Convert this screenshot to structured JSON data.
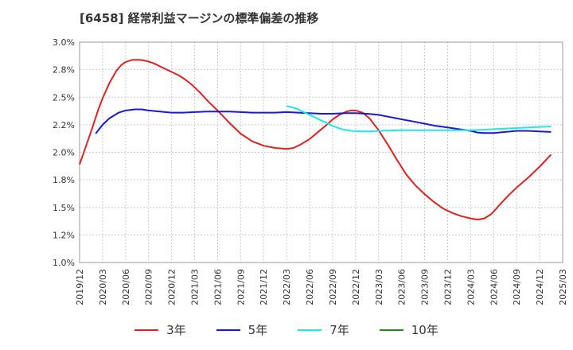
{
  "chart_data": {
    "type": "line",
    "title": "[6458]  経常利益マージンの標準偏差の推移",
    "xlabel": "",
    "ylabel": "",
    "ylim": [
      1.0,
      3.0
    ],
    "yticks": [
      "3.0%",
      "2.8%",
      "2.5%",
      "2.2%",
      "2.0%",
      "1.8%",
      "1.5%",
      "1.2%",
      "1.0%"
    ],
    "categories": [
      "2019/12",
      "2020/03",
      "2020/06",
      "2020/09",
      "2020/12",
      "2021/03",
      "2021/06",
      "2021/09",
      "2021/12",
      "2022/03",
      "2022/06",
      "2022/09",
      "2022/12",
      "2023/03",
      "2023/06",
      "2023/09",
      "2023/12",
      "2024/03",
      "2024/06",
      "2024/09",
      "2024/12",
      "2025/03"
    ],
    "grid": true,
    "legend_position": "bottom",
    "series": [
      {
        "name": "3年",
        "color": "#dd2222",
        "points": [
          [
            0,
            1.89
          ],
          [
            0.5,
            2.19
          ],
          [
            0.8,
            2.38
          ],
          [
            1,
            2.49
          ],
          [
            1.3,
            2.63
          ],
          [
            1.6,
            2.74
          ],
          [
            1.8,
            2.79
          ],
          [
            2,
            2.82
          ],
          [
            2.3,
            2.84
          ],
          [
            2.6,
            2.84
          ],
          [
            2.9,
            2.83
          ],
          [
            3.2,
            2.81
          ],
          [
            3.5,
            2.78
          ],
          [
            3.8,
            2.75
          ],
          [
            4,
            2.73
          ],
          [
            4.3,
            2.7
          ],
          [
            4.6,
            2.66
          ],
          [
            4.9,
            2.61
          ],
          [
            5.2,
            2.55
          ],
          [
            5.6,
            2.46
          ],
          [
            6,
            2.38
          ],
          [
            6.5,
            2.27
          ],
          [
            7,
            2.17
          ],
          [
            7.5,
            2.1
          ],
          [
            8,
            2.06
          ],
          [
            8.5,
            2.04
          ],
          [
            9,
            2.03
          ],
          [
            9.3,
            2.04
          ],
          [
            9.6,
            2.07
          ],
          [
            10,
            2.12
          ],
          [
            10.4,
            2.19
          ],
          [
            10.8,
            2.26
          ],
          [
            11,
            2.3
          ],
          [
            11.3,
            2.34
          ],
          [
            11.6,
            2.37
          ],
          [
            11.8,
            2.38
          ],
          [
            12,
            2.38
          ],
          [
            12.3,
            2.36
          ],
          [
            12.6,
            2.31
          ],
          [
            13,
            2.2
          ],
          [
            13.4,
            2.07
          ],
          [
            13.8,
            1.93
          ],
          [
            14.2,
            1.8
          ],
          [
            14.6,
            1.7
          ],
          [
            15,
            1.62
          ],
          [
            15.4,
            1.55
          ],
          [
            15.8,
            1.49
          ],
          [
            16.2,
            1.45
          ],
          [
            16.6,
            1.42
          ],
          [
            17,
            1.4
          ],
          [
            17.3,
            1.39
          ],
          [
            17.6,
            1.4
          ],
          [
            17.9,
            1.44
          ],
          [
            18.2,
            1.51
          ],
          [
            18.6,
            1.6
          ],
          [
            19,
            1.68
          ],
          [
            19.5,
            1.77
          ],
          [
            20,
            1.87
          ],
          [
            20.5,
            1.98
          ]
        ]
      },
      {
        "name": "5年",
        "color": "#1a1acc",
        "points": [
          [
            0.7,
            2.17
          ],
          [
            1,
            2.25
          ],
          [
            1.3,
            2.31
          ],
          [
            1.7,
            2.36
          ],
          [
            2,
            2.38
          ],
          [
            2.4,
            2.39
          ],
          [
            2.7,
            2.39
          ],
          [
            3,
            2.38
          ],
          [
            3.5,
            2.37
          ],
          [
            4,
            2.36
          ],
          [
            4.5,
            2.36
          ],
          [
            5,
            2.365
          ],
          [
            5.5,
            2.37
          ],
          [
            6,
            2.37
          ],
          [
            6.5,
            2.37
          ],
          [
            7,
            2.365
          ],
          [
            7.5,
            2.36
          ],
          [
            8,
            2.36
          ],
          [
            8.5,
            2.36
          ],
          [
            9,
            2.365
          ],
          [
            9.5,
            2.36
          ],
          [
            10,
            2.355
          ],
          [
            10.5,
            2.35
          ],
          [
            11,
            2.35
          ],
          [
            11.5,
            2.355
          ],
          [
            12,
            2.355
          ],
          [
            12.5,
            2.35
          ],
          [
            13,
            2.34
          ],
          [
            13.5,
            2.32
          ],
          [
            14,
            2.3
          ],
          [
            14.5,
            2.28
          ],
          [
            15,
            2.26
          ],
          [
            15.5,
            2.24
          ],
          [
            16,
            2.225
          ],
          [
            16.5,
            2.21
          ],
          [
            17,
            2.195
          ],
          [
            17.3,
            2.18
          ],
          [
            17.6,
            2.175
          ],
          [
            18,
            2.175
          ],
          [
            18.5,
            2.185
          ],
          [
            19,
            2.195
          ],
          [
            19.5,
            2.195
          ],
          [
            20,
            2.19
          ],
          [
            20.5,
            2.185
          ]
        ]
      },
      {
        "name": "7年",
        "color": "#22e5e5",
        "points": [
          [
            9,
            2.42
          ],
          [
            9.4,
            2.4
          ],
          [
            9.8,
            2.36
          ],
          [
            10.2,
            2.32
          ],
          [
            10.6,
            2.28
          ],
          [
            11,
            2.24
          ],
          [
            11.4,
            2.21
          ],
          [
            11.8,
            2.195
          ],
          [
            12.2,
            2.19
          ],
          [
            12.6,
            2.19
          ],
          [
            13,
            2.195
          ],
          [
            13.5,
            2.198
          ],
          [
            14,
            2.2
          ],
          [
            14.5,
            2.2
          ],
          [
            15,
            2.2
          ],
          [
            15.5,
            2.2
          ],
          [
            16,
            2.2
          ],
          [
            16.5,
            2.2
          ],
          [
            17,
            2.2
          ],
          [
            17.5,
            2.205
          ],
          [
            18,
            2.21
          ],
          [
            18.5,
            2.215
          ],
          [
            19,
            2.22
          ],
          [
            19.5,
            2.225
          ],
          [
            20,
            2.23
          ],
          [
            20.5,
            2.235
          ]
        ]
      },
      {
        "name": "10年",
        "color": "#228822",
        "points": []
      }
    ]
  }
}
